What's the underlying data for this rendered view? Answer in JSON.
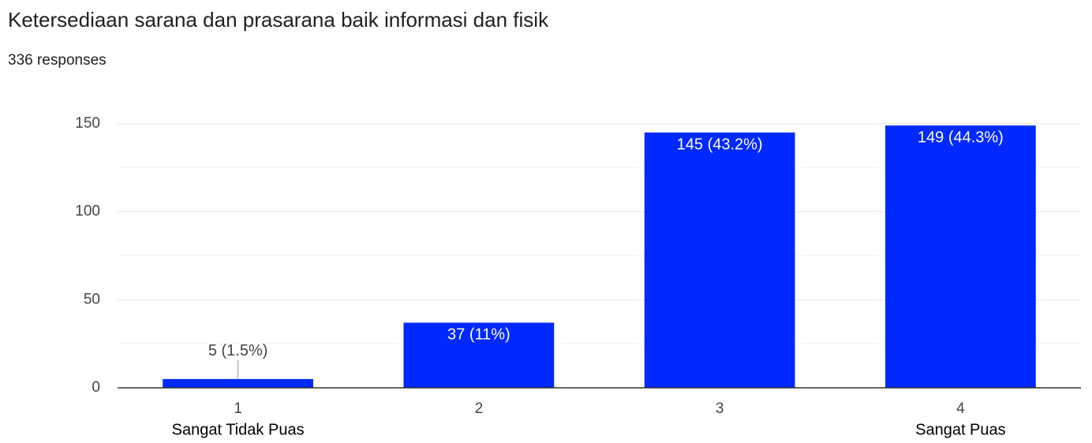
{
  "chart_data": {
    "type": "bar",
    "title": "Ketersediaan sarana dan prasarana baik informasi dan fisik",
    "subtitle": "336 responses",
    "categories": [
      "1",
      "2",
      "3",
      "4"
    ],
    "category_sublabels": [
      "Sangat Tidak Puas",
      null,
      null,
      "Sangat Puas"
    ],
    "values": [
      5,
      37,
      145,
      149
    ],
    "value_labels": [
      "5 (1.5%)",
      "37 (11%)",
      "145 (43.2%)",
      "149 (44.3%)"
    ],
    "color": "#0029ff",
    "ylim": [
      0,
      150
    ],
    "yticks": [
      0,
      50,
      100,
      150
    ],
    "minor_yticks": [
      25,
      75,
      125
    ],
    "grid": true
  }
}
